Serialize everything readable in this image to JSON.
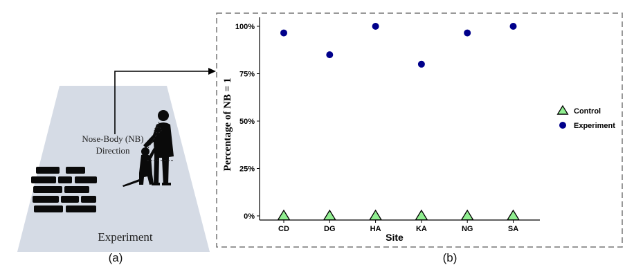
{
  "panel_a": {
    "label": "(a)",
    "scene_caption": "Experiment",
    "annotation_line1": "Nose-Body (NB)",
    "annotation_line2": "Direction"
  },
  "panel_b": {
    "label": "(b)"
  },
  "chart_data": {
    "type": "scatter",
    "title": "",
    "xlabel": "Site",
    "ylabel": "Percentage of NB = 1",
    "categories": [
      "CD",
      "DG",
      "HA",
      "KA",
      "NG",
      "SA"
    ],
    "y_ticks": [
      "0%",
      "25%",
      "50%",
      "75%",
      "100%"
    ],
    "ylim": [
      0,
      100
    ],
    "grid": false,
    "legend_position": "right",
    "series": [
      {
        "name": "Control",
        "marker": "triangle",
        "color": "#90ee90",
        "values": [
          0,
          0,
          0,
          0,
          0,
          0
        ]
      },
      {
        "name": "Experiment",
        "marker": "circle",
        "color": "#00008b",
        "values": [
          96.5,
          85,
          100,
          80,
          96.5,
          100
        ]
      }
    ]
  }
}
